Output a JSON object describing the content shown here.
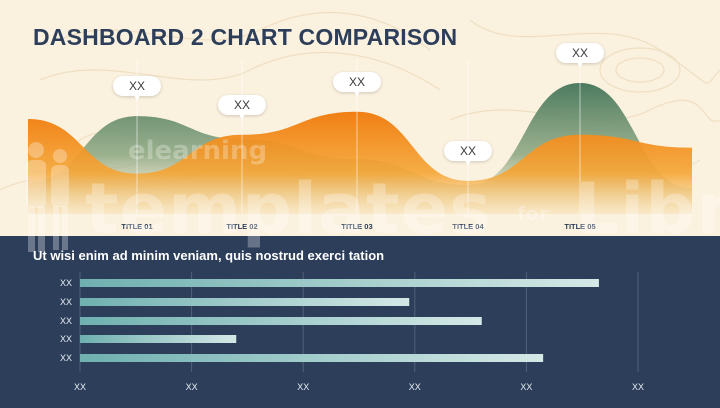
{
  "slide": {
    "title": "DASHBOARD 2 CHART COMPARISON",
    "subtitle": "Ut wisi enim ad minim veniam, quis nostrud exerci tation"
  },
  "watermark": {
    "top_text": "elearning",
    "main_text": "templates",
    "connector_text": "for",
    "right_text": "Library"
  },
  "colors": {
    "background": "#fbf1df",
    "panel": "#2c3e5a",
    "title": "#2c3e5a",
    "area_green": "#4c7a5f",
    "area_orange": "#f28c1c",
    "bar_teal": "#7fb8b8"
  },
  "chart_data": [
    {
      "type": "area",
      "categories": [
        "TITLE 01",
        "TITLE 02",
        "TITLE 03",
        "TITLE 04",
        "TITLE 05"
      ],
      "series": [
        {
          "name": "",
          "values": [
            68,
            52,
            38,
            20,
            91
          ]
        },
        {
          "name": "",
          "values": [
            28,
            55,
            71,
            23,
            55
          ]
        }
      ],
      "data_labels": [
        "XX",
        "XX",
        "XX",
        "XX",
        "XX"
      ],
      "ylim": [
        0,
        100
      ]
    },
    {
      "type": "bar",
      "orientation": "horizontal",
      "categories": [
        "XX",
        "XX",
        "XX",
        "XX",
        "XX"
      ],
      "values": [
        93,
        59,
        72,
        28,
        83
      ],
      "x_ticks": [
        "XX",
        "XX",
        "XX",
        "XX",
        "XX",
        "XX"
      ],
      "xlim": [
        0,
        100
      ],
      "grid": true
    }
  ]
}
